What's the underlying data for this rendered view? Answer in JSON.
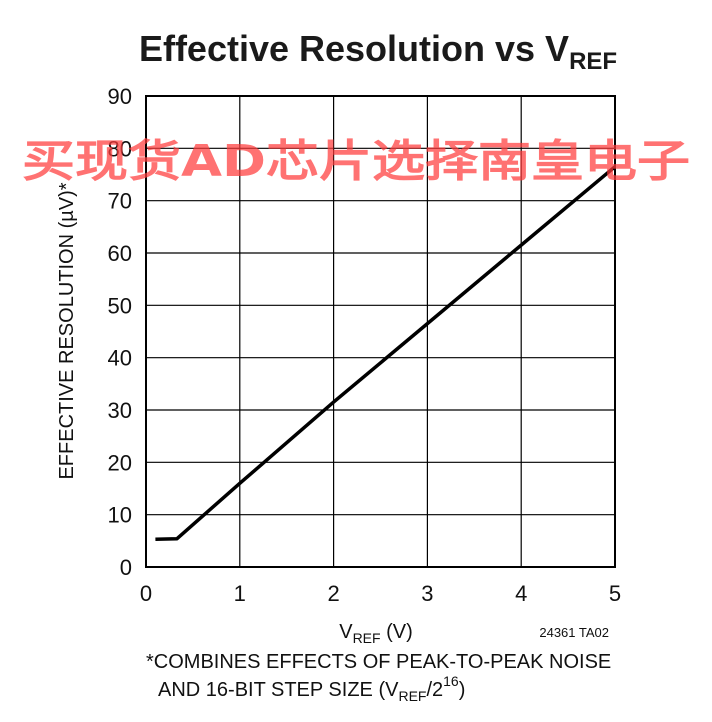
{
  "chart_data": {
    "type": "line",
    "title_main": "Effective Resolution vs V",
    "title_sub": "REF",
    "xlabel_main": "V",
    "xlabel_sub": "REF",
    "xlabel_unit": " (V)",
    "ylabel": "EFFECTIVE RESOLUTION (µV)*",
    "xlim": [
      0,
      5
    ],
    "ylim": [
      0,
      90
    ],
    "x_ticks": [
      "0",
      "1",
      "2",
      "3",
      "4",
      "5"
    ],
    "y_ticks": [
      "0",
      "10",
      "20",
      "30",
      "40",
      "50",
      "60",
      "70",
      "80",
      "90"
    ],
    "grid": true,
    "series": [
      {
        "x": [
          0.1,
          0.33,
          1,
          2,
          3,
          4,
          5
        ],
        "y": [
          5.3,
          5.4,
          16,
          31.5,
          46.5,
          61.5,
          76.5
        ]
      }
    ],
    "figure_id": "24361 TA02",
    "footnote_line1": "*COMBINES EFFECTS OF PEAK-TO-PEAK NOISE",
    "footnote_line2_a": "AND 16-BIT STEP SIZE (V",
    "footnote_line2_sub": "REF",
    "footnote_line2_b": "/2",
    "footnote_line2_sup": "16",
    "footnote_line2_c": ")"
  },
  "watermark_text": "买现货AD芯片选择南皇电子",
  "colors": {
    "watermark": "#ff3b3b",
    "line": "#000000"
  }
}
